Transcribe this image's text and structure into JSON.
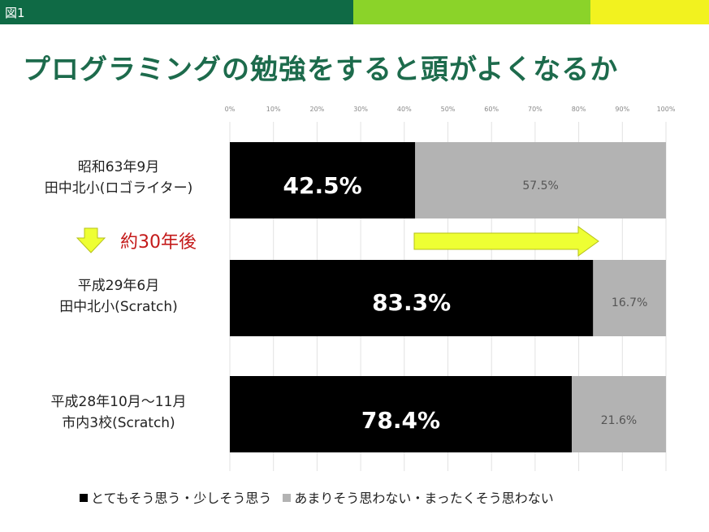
{
  "figure_label": "図1",
  "colors": {
    "bar_top_green_dark": "#0f6a45",
    "bar_top_green_light": "#8bd329",
    "bar_top_yellow": "#f2f21f",
    "title": "#1d6b4c",
    "agree": "#000000",
    "disagree": "#b3b3b3",
    "arrow_fill": "#eeff33",
    "annotation_text": "#c41a1a"
  },
  "chart_data": {
    "type": "bar",
    "orientation": "horizontal",
    "stacked": true,
    "title": "プログラミングの勉強をすると頭がよくなるか",
    "categories": [
      [
        "昭和63年9月",
        "田中北小(ロゴライター)"
      ],
      [
        "平成29年6月",
        "田中北小(Scratch)"
      ],
      [
        "平成28年10月～11月",
        "市内3校(Scratch)"
      ]
    ],
    "series": [
      {
        "name": "とてもそう思う・少しそう思う",
        "color": "#000000",
        "values": [
          42.5,
          83.3,
          78.4
        ],
        "labels": [
          "42.5%",
          "83.3%",
          "78.4%"
        ]
      },
      {
        "name": "あまりそう思わない・まったくそう思わない",
        "color": "#b3b3b3",
        "values": [
          57.5,
          16.7,
          21.6
        ],
        "labels": [
          "57.5%",
          "16.7%",
          "21.6%"
        ]
      }
    ],
    "x_ticks": [
      "0%",
      "10%",
      "20%",
      "30%",
      "40%",
      "50%",
      "60%",
      "70%",
      "80%",
      "90%",
      "100%"
    ],
    "xlim": [
      0,
      100
    ],
    "grid": true,
    "legend_position": "bottom",
    "annotation": {
      "text": "約30年後",
      "icons": [
        "down-arrow-icon",
        "right-arrow-icon"
      ]
    }
  }
}
